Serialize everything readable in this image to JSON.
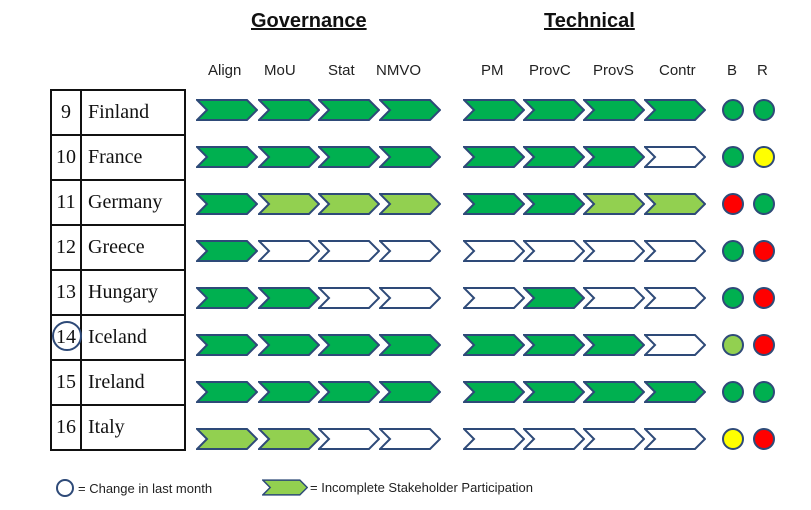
{
  "headings": {
    "governance": "Governance",
    "technical": "Technical"
  },
  "columns": [
    "Align",
    "MoU",
    "Stat",
    "NMVO",
    "PM",
    "ProvC",
    "ProvS",
    "Contr",
    "B",
    "R"
  ],
  "colors": {
    "complete": "#00b050",
    "incomplete": "#92d050",
    "none": "#ffffff",
    "outline": "#2e4a78",
    "red": "#ff0000",
    "yellow": "#ffff00",
    "green": "#00b050",
    "light_green": "#92d050"
  },
  "rows": [
    {
      "num": "9",
      "country": "Finland",
      "changed": false,
      "steps": [
        "complete",
        "complete",
        "complete",
        "complete",
        "complete",
        "complete",
        "complete",
        "complete"
      ],
      "b": "green",
      "r": "green"
    },
    {
      "num": "10",
      "country": "France",
      "changed": false,
      "steps": [
        "complete",
        "complete",
        "complete",
        "complete",
        "complete",
        "complete",
        "complete",
        "none"
      ],
      "b": "green",
      "r": "yellow"
    },
    {
      "num": "11",
      "country": "Germany",
      "changed": false,
      "steps": [
        "complete",
        "incomplete",
        "incomplete",
        "incomplete",
        "complete",
        "complete",
        "incomplete",
        "incomplete"
      ],
      "b": "red",
      "r": "green"
    },
    {
      "num": "12",
      "country": "Greece",
      "changed": false,
      "steps": [
        "complete",
        "none",
        "none",
        "none",
        "none",
        "none",
        "none",
        "none"
      ],
      "b": "green",
      "r": "red"
    },
    {
      "num": "13",
      "country": "Hungary",
      "changed": false,
      "steps": [
        "complete",
        "complete",
        "none",
        "none",
        "none",
        "complete",
        "none",
        "none"
      ],
      "b": "green",
      "r": "red"
    },
    {
      "num": "14",
      "country": "Iceland",
      "changed": true,
      "steps": [
        "complete",
        "complete",
        "complete",
        "complete",
        "complete",
        "complete",
        "complete",
        "none"
      ],
      "b": "light_green",
      "r": "red"
    },
    {
      "num": "15",
      "country": "Ireland",
      "changed": false,
      "steps": [
        "complete",
        "complete",
        "complete",
        "complete",
        "complete",
        "complete",
        "complete",
        "complete"
      ],
      "b": "green",
      "r": "green"
    },
    {
      "num": "16",
      "country": "Italy",
      "changed": false,
      "steps": [
        "incomplete",
        "incomplete",
        "none",
        "none",
        "none",
        "none",
        "none",
        "none"
      ],
      "b": "yellow",
      "r": "red"
    }
  ],
  "legend": {
    "change": "= Change in last month",
    "incomplete": "= Incomplete Stakeholder Participation"
  }
}
